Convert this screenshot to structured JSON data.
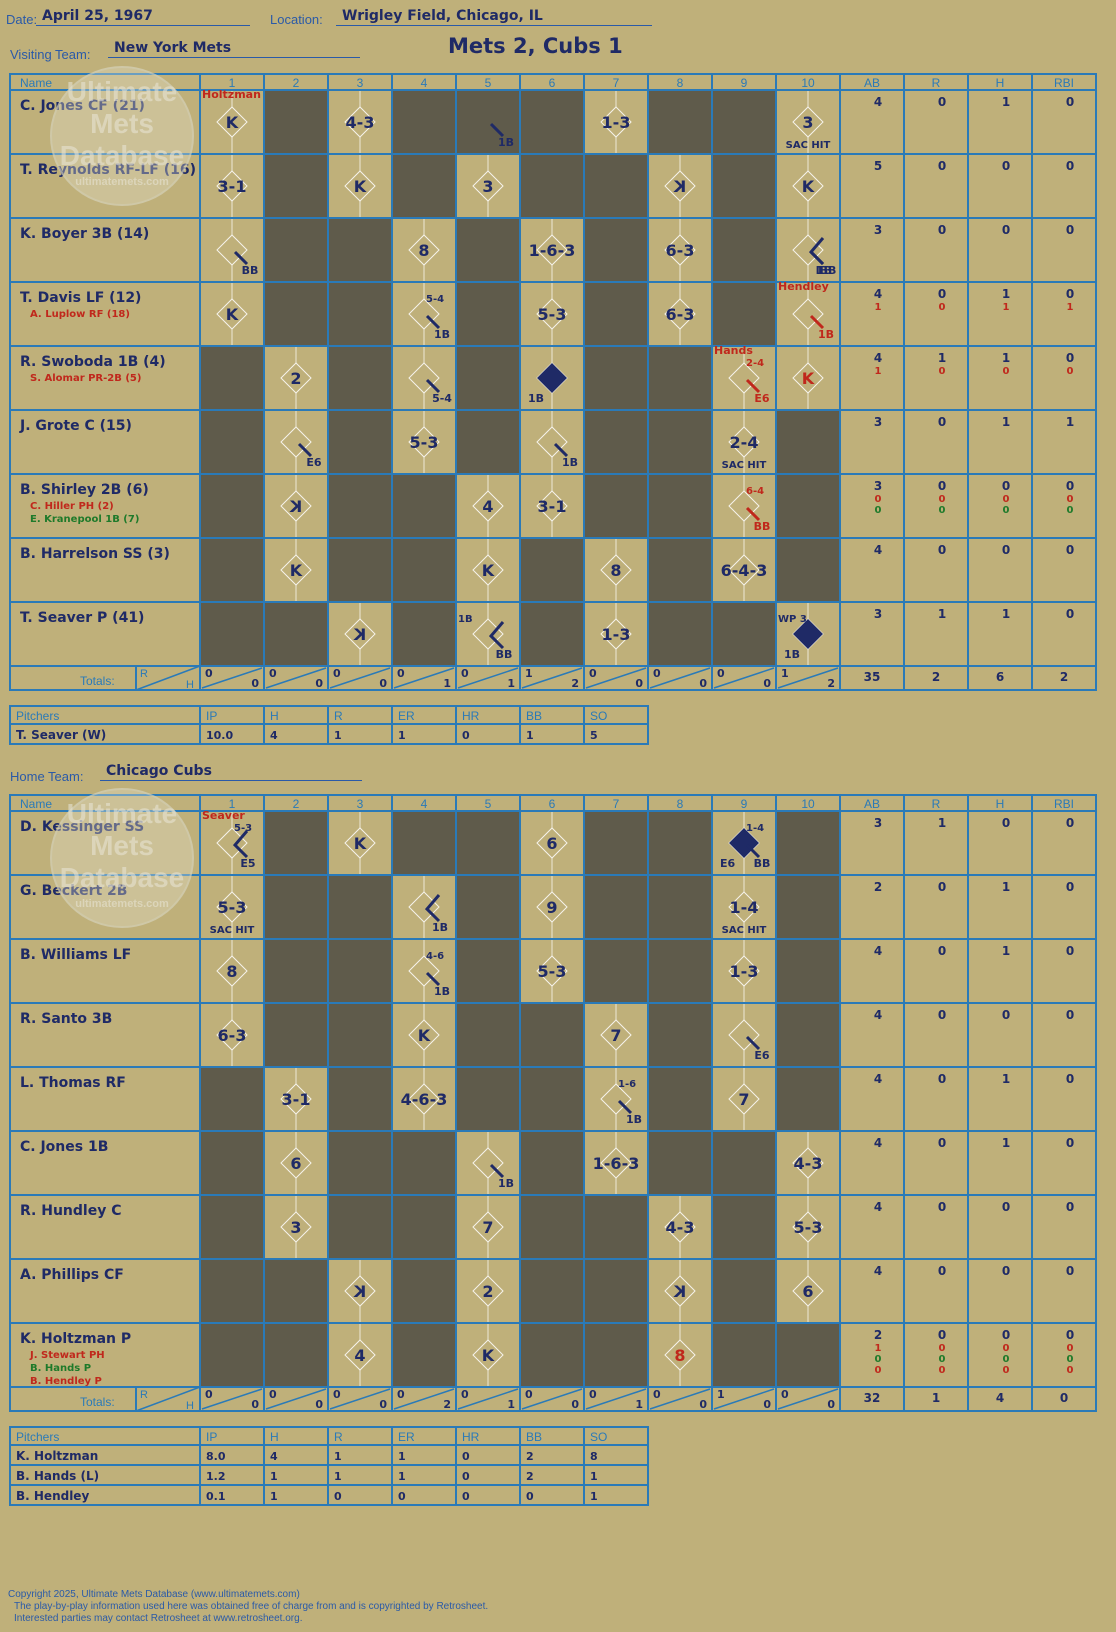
{
  "header": {
    "date_label": "Date:",
    "date": "April 25, 1967",
    "location_label": "Location:",
    "location": "Wrigley Field, Chicago, IL",
    "visiting_label": "Visiting Team:",
    "visiting_team": "New York Mets",
    "home_label": "Home Team:",
    "home_team": "Chicago Cubs",
    "result": "Mets 2, Cubs 1"
  },
  "watermark": {
    "line1": "Ultimate",
    "line2": "Mets",
    "line3": "Database",
    "line4": "ultimatemets.com"
  },
  "columns": {
    "name": "Name",
    "innings": [
      "1",
      "2",
      "3",
      "4",
      "5",
      "6",
      "7",
      "8",
      "9",
      "10"
    ],
    "stats": [
      "AB",
      "R",
      "H",
      "RBI"
    ],
    "totals_label": "Totals:",
    "r_label": "R",
    "h_label": "H"
  },
  "pitcher_columns": [
    "Pitchers",
    "IP",
    "H",
    "R",
    "ER",
    "HR",
    "BB",
    "SO"
  ],
  "colors": {
    "shade": "#5f5b4b",
    "grid": "#2a7ab8",
    "ink": "#1f2a66",
    "red": "#c0281c",
    "green": "#1e7a2a",
    "bg": "#bfb07a"
  },
  "visitors": {
    "players": [
      {
        "name": "C. Jones CF (21)",
        "subs": [],
        "stats": [
          [
            "4"
          ],
          [
            "0"
          ],
          [
            "1"
          ],
          [
            "0"
          ]
        ]
      },
      {
        "name": "T. Reynolds RF-LF (16)",
        "subs": [],
        "stats": [
          [
            "5"
          ],
          [
            "0"
          ],
          [
            "0"
          ],
          [
            "0"
          ]
        ]
      },
      {
        "name": "K. Boyer 3B (14)",
        "subs": [],
        "stats": [
          [
            "3"
          ],
          [
            "0"
          ],
          [
            "0"
          ],
          [
            "0"
          ]
        ]
      },
      {
        "name": "T. Davis LF (12)",
        "subs": [
          {
            "name": "A. Luplow RF (18)",
            "color": "red"
          }
        ],
        "stats": [
          [
            "4",
            "1"
          ],
          [
            "0",
            "0"
          ],
          [
            "1",
            "1"
          ],
          [
            "0",
            "1"
          ]
        ]
      },
      {
        "name": "R. Swoboda 1B (4)",
        "subs": [
          {
            "name": "S. Alomar PR-2B (5)",
            "color": "red"
          }
        ],
        "stats": [
          [
            "4",
            "1"
          ],
          [
            "1",
            "0"
          ],
          [
            "1",
            "0"
          ],
          [
            "0",
            "0"
          ]
        ]
      },
      {
        "name": "J. Grote C (15)",
        "subs": [],
        "stats": [
          [
            "3"
          ],
          [
            "0"
          ],
          [
            "1"
          ],
          [
            "1"
          ]
        ]
      },
      {
        "name": "B. Shirley 2B (6)",
        "subs": [
          {
            "name": "C. Hiller PH (2)",
            "color": "red"
          },
          {
            "name": "E. Kranepool 1B (7)",
            "color": "green"
          }
        ],
        "stats": [
          [
            "3",
            "0",
            "0"
          ],
          [
            "0",
            "0",
            "0"
          ],
          [
            "0",
            "0",
            "0"
          ],
          [
            "0",
            "0",
            "0"
          ]
        ]
      },
      {
        "name": "B. Harrelson SS (3)",
        "subs": [],
        "stats": [
          [
            "4"
          ],
          [
            "0"
          ],
          [
            "0"
          ],
          [
            "0"
          ]
        ]
      },
      {
        "name": "T. Seaver P (41)",
        "subs": [],
        "stats": [
          [
            "3"
          ],
          [
            "1"
          ],
          [
            "1"
          ],
          [
            "0"
          ]
        ]
      }
    ],
    "shade": [
      [
        0,
        1,
        0,
        1,
        1,
        1,
        0,
        1,
        1,
        0
      ],
      [
        0,
        1,
        0,
        1,
        0,
        1,
        1,
        0,
        1,
        0
      ],
      [
        0,
        1,
        1,
        0,
        1,
        0,
        1,
        0,
        1,
        0
      ],
      [
        0,
        1,
        1,
        0,
        1,
        0,
        1,
        0,
        1,
        0
      ],
      [
        1,
        0,
        1,
        0,
        1,
        0,
        1,
        1,
        0,
        0
      ],
      [
        1,
        0,
        1,
        0,
        1,
        0,
        1,
        1,
        0,
        1
      ],
      [
        1,
        0,
        1,
        1,
        0,
        0,
        1,
        1,
        0,
        1
      ],
      [
        1,
        0,
        1,
        1,
        0,
        1,
        0,
        1,
        0,
        1
      ],
      [
        1,
        1,
        0,
        1,
        0,
        1,
        0,
        1,
        1,
        0
      ]
    ],
    "plays": [
      {
        "r": 0,
        "c": 0,
        "t": "K"
      },
      {
        "r": 0,
        "c": 0,
        "t": "Holtzman",
        "k": "pitcher"
      },
      {
        "r": 0,
        "c": 2,
        "t": "4-3"
      },
      {
        "r": 0,
        "c": 4,
        "t": "1B",
        "k": "hit1"
      },
      {
        "r": 0,
        "c": 6,
        "t": "1-3"
      },
      {
        "r": 0,
        "c": 9,
        "t": "3"
      },
      {
        "r": 0,
        "c": 9,
        "t": "SAC HIT",
        "k": "sac"
      },
      {
        "r": 1,
        "c": 0,
        "t": "3-1"
      },
      {
        "r": 1,
        "c": 2,
        "t": "K"
      },
      {
        "r": 1,
        "c": 4,
        "t": "3"
      },
      {
        "r": 1,
        "c": 7,
        "t": "K",
        "k": "rev"
      },
      {
        "r": 1,
        "c": 9,
        "t": "K"
      },
      {
        "r": 2,
        "c": 0,
        "t": "BB",
        "k": "hit1"
      },
      {
        "r": 2,
        "c": 3,
        "t": "8"
      },
      {
        "r": 2,
        "c": 5,
        "t": "1-6-3"
      },
      {
        "r": 2,
        "c": 7,
        "t": "6-3"
      },
      {
        "r": 2,
        "c": 9,
        "t": "1B",
        "k": "adv2"
      },
      {
        "r": 2,
        "c": 9,
        "t": "IBB",
        "k": "hit1"
      },
      {
        "r": 3,
        "c": 0,
        "t": "K"
      },
      {
        "r": 3,
        "c": 3,
        "t": "1B",
        "k": "hit1"
      },
      {
        "r": 3,
        "c": 3,
        "t": "5-4",
        "k": "note"
      },
      {
        "r": 3,
        "c": 5,
        "t": "5-3"
      },
      {
        "r": 3,
        "c": 7,
        "t": "6-3"
      },
      {
        "r": 3,
        "c": 9,
        "t": "1B",
        "k": "hit1red"
      },
      {
        "r": 3,
        "c": 9,
        "t": "Hendley",
        "k": "pitcher"
      },
      {
        "r": 4,
        "c": 1,
        "t": "2"
      },
      {
        "r": 4,
        "c": 3,
        "t": "5-4",
        "k": "hit1"
      },
      {
        "r": 4,
        "c": 5,
        "t": "1B",
        "k": "run"
      },
      {
        "r": 4,
        "c": 8,
        "t": "E6",
        "k": "hit1red"
      },
      {
        "r": 4,
        "c": 8,
        "t": "2-4",
        "k": "notered"
      },
      {
        "r": 4,
        "c": 8,
        "t": "Hands",
        "k": "pitcher"
      },
      {
        "r": 4,
        "c": 9,
        "t": "K",
        "k": "red"
      },
      {
        "r": 5,
        "c": 1,
        "t": "E6",
        "k": "hit1"
      },
      {
        "r": 5,
        "c": 3,
        "t": "5-3"
      },
      {
        "r": 5,
        "c": 5,
        "t": "1B",
        "k": "hit1"
      },
      {
        "r": 5,
        "c": 8,
        "t": "2-4"
      },
      {
        "r": 5,
        "c": 8,
        "t": "SAC HIT",
        "k": "sac"
      },
      {
        "r": 6,
        "c": 1,
        "t": "K",
        "k": "rev"
      },
      {
        "r": 6,
        "c": 4,
        "t": "4"
      },
      {
        "r": 6,
        "c": 5,
        "t": "3-1"
      },
      {
        "r": 6,
        "c": 8,
        "t": "BB",
        "k": "hit1red"
      },
      {
        "r": 6,
        "c": 8,
        "t": "6-4",
        "k": "notered"
      },
      {
        "r": 7,
        "c": 1,
        "t": "K"
      },
      {
        "r": 7,
        "c": 4,
        "t": "K"
      },
      {
        "r": 7,
        "c": 6,
        "t": "8"
      },
      {
        "r": 7,
        "c": 8,
        "t": "6-4-3"
      },
      {
        "r": 8,
        "c": 2,
        "t": "K",
        "k": "rev"
      },
      {
        "r": 8,
        "c": 4,
        "t": "BB",
        "k": "adv2"
      },
      {
        "r": 8,
        "c": 4,
        "t": "1B",
        "k": "note1"
      },
      {
        "r": 8,
        "c": 6,
        "t": "1-3"
      },
      {
        "r": 8,
        "c": 9,
        "t": "1B",
        "k": "run"
      },
      {
        "r": 8,
        "c": 9,
        "t": "WP 3",
        "k": "note1"
      }
    ],
    "totals": [
      [
        "0",
        "0"
      ],
      [
        "0",
        "0"
      ],
      [
        "0",
        "0"
      ],
      [
        "0",
        "1"
      ],
      [
        "0",
        "1"
      ],
      [
        "1",
        "2"
      ],
      [
        "0",
        "0"
      ],
      [
        "0",
        "0"
      ],
      [
        "0",
        "0"
      ],
      [
        "1",
        "2"
      ]
    ],
    "stat_totals": [
      "35",
      "2",
      "6",
      "2"
    ],
    "pitchers": [
      [
        "T. Seaver (W)",
        "10.0",
        "4",
        "1",
        "1",
        "0",
        "1",
        "5"
      ]
    ]
  },
  "home": {
    "players": [
      {
        "name": "D. Kessinger SS",
        "subs": [],
        "stats": [
          [
            "3"
          ],
          [
            "1"
          ],
          [
            "0"
          ],
          [
            "0"
          ]
        ]
      },
      {
        "name": "G. Beckert 2B",
        "subs": [],
        "stats": [
          [
            "2"
          ],
          [
            "0"
          ],
          [
            "1"
          ],
          [
            "0"
          ]
        ]
      },
      {
        "name": "B. Williams LF",
        "subs": [],
        "stats": [
          [
            "4"
          ],
          [
            "0"
          ],
          [
            "1"
          ],
          [
            "0"
          ]
        ]
      },
      {
        "name": "R. Santo 3B",
        "subs": [],
        "stats": [
          [
            "4"
          ],
          [
            "0"
          ],
          [
            "0"
          ],
          [
            "0"
          ]
        ]
      },
      {
        "name": "L. Thomas RF",
        "subs": [],
        "stats": [
          [
            "4"
          ],
          [
            "0"
          ],
          [
            "1"
          ],
          [
            "0"
          ]
        ]
      },
      {
        "name": "C. Jones 1B",
        "subs": [],
        "stats": [
          [
            "4"
          ],
          [
            "0"
          ],
          [
            "1"
          ],
          [
            "0"
          ]
        ]
      },
      {
        "name": "R. Hundley C",
        "subs": [],
        "stats": [
          [
            "4"
          ],
          [
            "0"
          ],
          [
            "0"
          ],
          [
            "0"
          ]
        ]
      },
      {
        "name": "A. Phillips CF",
        "subs": [],
        "stats": [
          [
            "4"
          ],
          [
            "0"
          ],
          [
            "0"
          ],
          [
            "0"
          ]
        ]
      },
      {
        "name": "K. Holtzman P",
        "subs": [
          {
            "name": "J. Stewart PH",
            "color": "red"
          },
          {
            "name": "B. Hands P",
            "color": "green"
          },
          {
            "name": "B. Hendley P",
            "color": "red"
          }
        ],
        "stats": [
          [
            "2",
            "1",
            "0",
            "0"
          ],
          [
            "0",
            "0",
            "0",
            "0"
          ],
          [
            "0",
            "0",
            "0",
            "0"
          ],
          [
            "0",
            "0",
            "0",
            "0"
          ]
        ]
      }
    ],
    "shade": [
      [
        0,
        1,
        0,
        1,
        1,
        0,
        1,
        1,
        0,
        1
      ],
      [
        0,
        1,
        1,
        0,
        1,
        0,
        1,
        1,
        0,
        1
      ],
      [
        0,
        1,
        1,
        0,
        1,
        0,
        1,
        1,
        0,
        1
      ],
      [
        0,
        1,
        1,
        0,
        1,
        1,
        0,
        1,
        0,
        1
      ],
      [
        1,
        0,
        1,
        0,
        1,
        1,
        0,
        1,
        0,
        1
      ],
      [
        1,
        0,
        1,
        1,
        0,
        1,
        0,
        1,
        1,
        0
      ],
      [
        1,
        0,
        1,
        1,
        0,
        1,
        1,
        0,
        1,
        0
      ],
      [
        1,
        1,
        0,
        1,
        0,
        1,
        1,
        0,
        1,
        0
      ],
      [
        1,
        1,
        0,
        1,
        0,
        1,
        1,
        0,
        1,
        1
      ]
    ],
    "plays": [
      {
        "r": 0,
        "c": 0,
        "t": "E5",
        "k": "adv2"
      },
      {
        "r": 0,
        "c": 0,
        "t": "5-3",
        "k": "note"
      },
      {
        "r": 0,
        "c": 0,
        "t": "Seaver",
        "k": "pitcher"
      },
      {
        "r": 0,
        "c": 2,
        "t": "K"
      },
      {
        "r": 0,
        "c": 5,
        "t": "6"
      },
      {
        "r": 0,
        "c": 8,
        "t": "E6",
        "k": "run"
      },
      {
        "r": 0,
        "c": 8,
        "t": "BB",
        "k": "hit1"
      },
      {
        "r": 0,
        "c": 8,
        "t": "1-4",
        "k": "note"
      },
      {
        "r": 1,
        "c": 0,
        "t": "5-3"
      },
      {
        "r": 1,
        "c": 0,
        "t": "SAC HIT",
        "k": "sac"
      },
      {
        "r": 1,
        "c": 3,
        "t": "1B",
        "k": "adv2"
      },
      {
        "r": 1,
        "c": 5,
        "t": "9"
      },
      {
        "r": 1,
        "c": 8,
        "t": "1-4"
      },
      {
        "r": 1,
        "c": 8,
        "t": "SAC HIT",
        "k": "sac"
      },
      {
        "r": 2,
        "c": 0,
        "t": "8"
      },
      {
        "r": 2,
        "c": 3,
        "t": "1B",
        "k": "hit1"
      },
      {
        "r": 2,
        "c": 3,
        "t": "4-6",
        "k": "note"
      },
      {
        "r": 2,
        "c": 5,
        "t": "5-3"
      },
      {
        "r": 2,
        "c": 8,
        "t": "1-3"
      },
      {
        "r": 3,
        "c": 0,
        "t": "6-3"
      },
      {
        "r": 3,
        "c": 3,
        "t": "K"
      },
      {
        "r": 3,
        "c": 6,
        "t": "7"
      },
      {
        "r": 3,
        "c": 8,
        "t": "E6",
        "k": "hit1"
      },
      {
        "r": 4,
        "c": 1,
        "t": "3-1"
      },
      {
        "r": 4,
        "c": 3,
        "t": "4-6-3"
      },
      {
        "r": 4,
        "c": 6,
        "t": "1B",
        "k": "hit1"
      },
      {
        "r": 4,
        "c": 6,
        "t": "1-6",
        "k": "note"
      },
      {
        "r": 4,
        "c": 8,
        "t": "7"
      },
      {
        "r": 5,
        "c": 1,
        "t": "6"
      },
      {
        "r": 5,
        "c": 4,
        "t": "1B",
        "k": "hit1"
      },
      {
        "r": 5,
        "c": 6,
        "t": "1-6-3"
      },
      {
        "r": 5,
        "c": 9,
        "t": "4-3"
      },
      {
        "r": 6,
        "c": 1,
        "t": "3"
      },
      {
        "r": 6,
        "c": 4,
        "t": "7"
      },
      {
        "r": 6,
        "c": 7,
        "t": "4-3"
      },
      {
        "r": 6,
        "c": 9,
        "t": "5-3"
      },
      {
        "r": 7,
        "c": 2,
        "t": "K",
        "k": "rev"
      },
      {
        "r": 7,
        "c": 4,
        "t": "2"
      },
      {
        "r": 7,
        "c": 7,
        "t": "K",
        "k": "rev"
      },
      {
        "r": 7,
        "c": 9,
        "t": "6"
      },
      {
        "r": 8,
        "c": 2,
        "t": "4"
      },
      {
        "r": 8,
        "c": 4,
        "t": "K"
      },
      {
        "r": 8,
        "c": 7,
        "t": "8",
        "k": "red"
      }
    ],
    "totals": [
      [
        "0",
        "0"
      ],
      [
        "0",
        "0"
      ],
      [
        "0",
        "0"
      ],
      [
        "0",
        "2"
      ],
      [
        "0",
        "1"
      ],
      [
        "0",
        "0"
      ],
      [
        "0",
        "1"
      ],
      [
        "0",
        "0"
      ],
      [
        "1",
        "0"
      ],
      [
        "0",
        "0"
      ]
    ],
    "stat_totals": [
      "32",
      "1",
      "4",
      "0"
    ],
    "pitchers": [
      [
        "K. Holtzman",
        "8.0",
        "4",
        "1",
        "1",
        "0",
        "2",
        "8"
      ],
      [
        "B. Hands (L)",
        "1.2",
        "1",
        "1",
        "1",
        "0",
        "2",
        "1"
      ],
      [
        "B. Hendley",
        "0.1",
        "1",
        "0",
        "0",
        "0",
        "0",
        "1"
      ]
    ]
  },
  "footer": {
    "line1": "Copyright 2025, Ultimate Mets Database (www.ultimatemets.com)",
    "line2": "The play-by-play information used here was obtained free of charge from and is copyrighted by Retrosheet.",
    "line3": "Interested parties may contact Retrosheet at www.retrosheet.org."
  }
}
